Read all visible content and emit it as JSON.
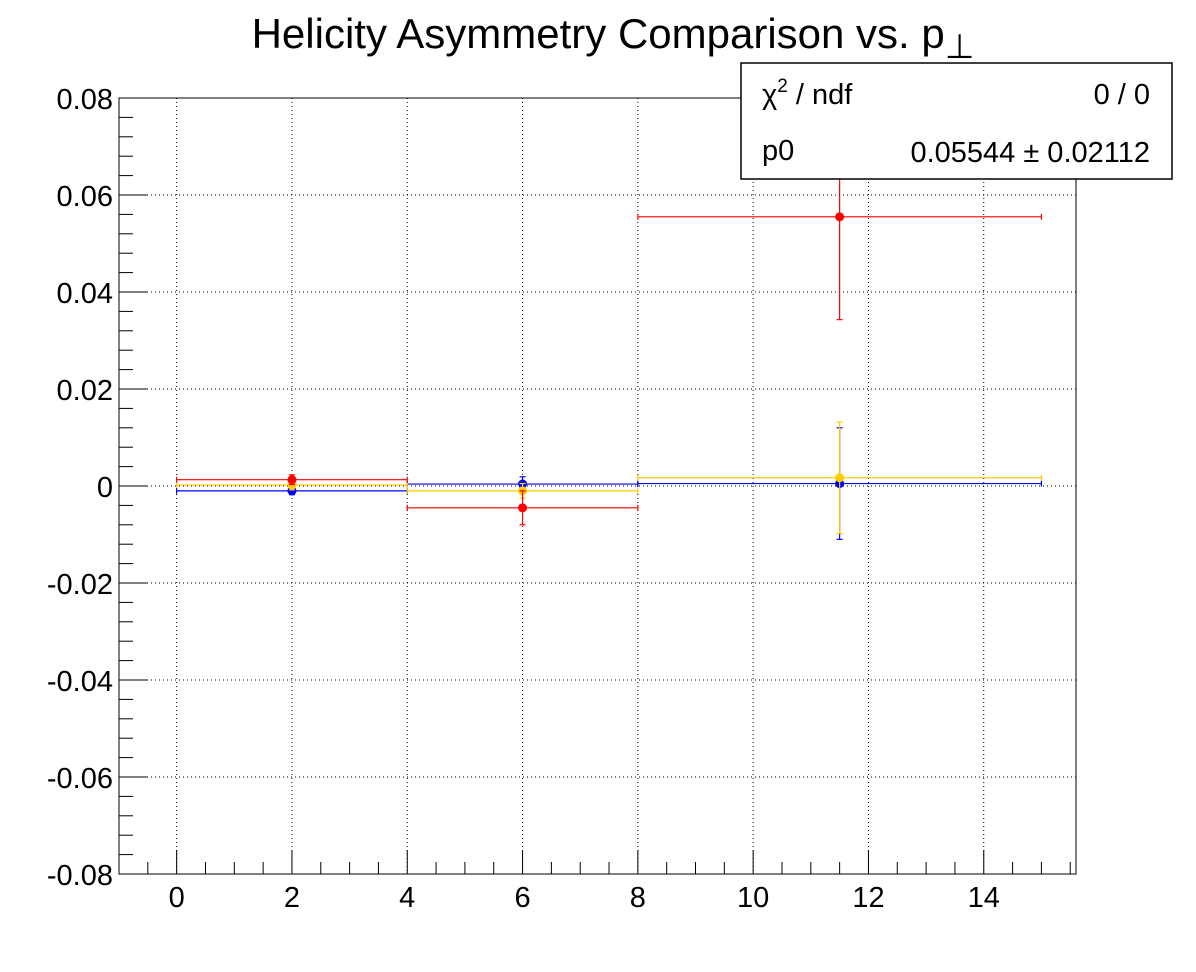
{
  "chart_data": {
    "type": "scatter",
    "title": "Helicity Asymmetry Comparison vs. p",
    "title_subscript": "⊥",
    "xlabel": "",
    "ylabel": "",
    "xlim": [
      -1,
      15.6
    ],
    "ylim": [
      -0.08,
      0.08
    ],
    "grid": true,
    "x_ticks": [
      0,
      2,
      4,
      6,
      8,
      10,
      12,
      14
    ],
    "x_tick_labels": [
      "0",
      "2",
      "4",
      "6",
      "8",
      "10",
      "12",
      "14"
    ],
    "y_ticks": [
      -0.08,
      -0.06,
      -0.04,
      -0.02,
      0,
      0.02,
      0.04,
      0.06,
      0.08
    ],
    "y_tick_labels": [
      "-0.08",
      "-0.06",
      "-0.04",
      "-0.02",
      "0",
      "0.02",
      "0.04",
      "0.06",
      "0.08"
    ],
    "series": [
      {
        "color": "#0000ff",
        "points": [
          {
            "x": 2,
            "xlo": 0,
            "xhi": 4,
            "y": -0.001,
            "ey": 0.0008
          },
          {
            "x": 6,
            "xlo": 4,
            "xhi": 8,
            "y": 0.0004,
            "ey": 0.0015
          },
          {
            "x": 11.5,
            "xlo": 8,
            "xhi": 15,
            "y": 0.0005,
            "ey": 0.0115
          }
        ]
      },
      {
        "color": "#ffcc00",
        "points": [
          {
            "x": 2,
            "xlo": 0,
            "xhi": 4,
            "y": 0.0002,
            "ey": 0.001
          },
          {
            "x": 6,
            "xlo": 4,
            "xhi": 8,
            "y": -0.001,
            "ey": 0.0015
          },
          {
            "x": 11.5,
            "xlo": 8,
            "xhi": 15,
            "y": 0.0017,
            "ey": 0.0115
          }
        ]
      },
      {
        "color": "#ff0000",
        "points": [
          {
            "x": 2,
            "xlo": 0,
            "xhi": 4,
            "y": 0.0013,
            "ey": 0.001
          },
          {
            "x": 6,
            "xlo": 4,
            "xhi": 8,
            "y": -0.0045,
            "ey": 0.0035
          },
          {
            "x": 11.5,
            "xlo": 8,
            "xhi": 15,
            "y": 0.0555,
            "ey": 0.0212
          }
        ]
      }
    ]
  },
  "stats_box": {
    "row1_label": "χ",
    "row1_label_sup": "2",
    "row1_label_rest": " / ndf",
    "row1_value": "0 / 0",
    "row2_label": "p0",
    "row2_value": "0.05544 ± 0.02112"
  }
}
